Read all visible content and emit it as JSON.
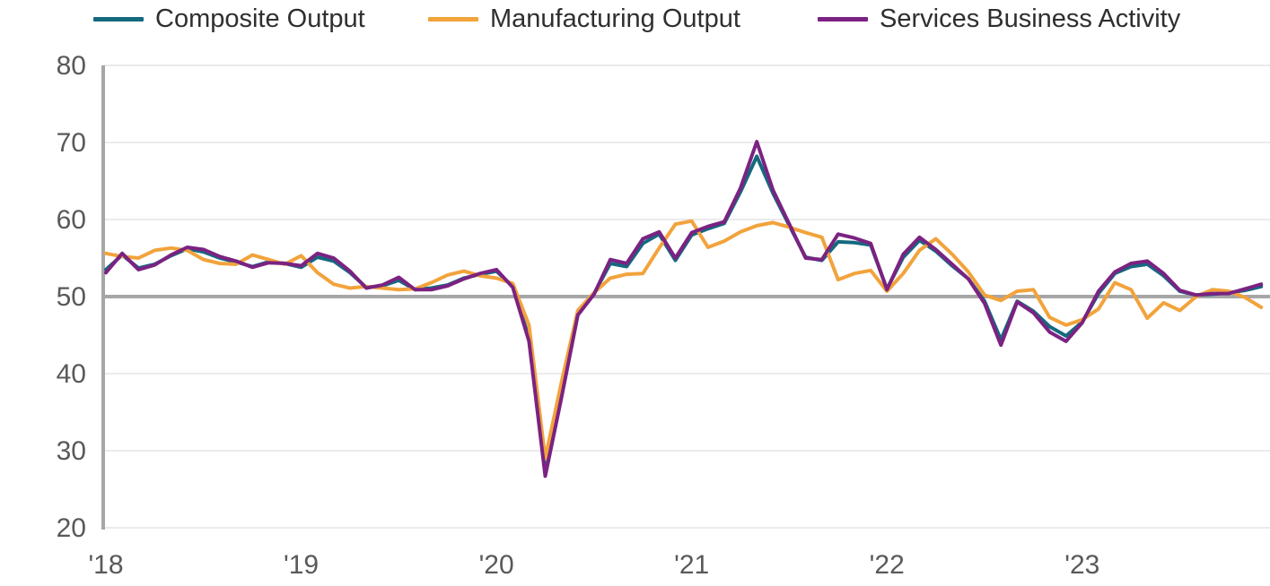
{
  "legend": {
    "items": [
      {
        "label": "Composite Output",
        "color": "#14697F"
      },
      {
        "label": "Manufacturing Output",
        "color": "#F2A33C"
      },
      {
        "label": "Services Business Activity",
        "color": "#7B2282"
      }
    ]
  },
  "style": {
    "background": "#FFFFFF",
    "grid_color": "#EBEBEB",
    "axis_color": "#A6A6A6",
    "reference_line_color": "#A6A6A6",
    "tick_label_color": "#595959",
    "legend_text_color": "#2F2F2F"
  },
  "chart_data": {
    "type": "line",
    "title": "",
    "xlabel": "",
    "ylabel": "",
    "ylim": [
      20,
      80
    ],
    "y_ticks": [
      20,
      30,
      40,
      50,
      60,
      70,
      80
    ],
    "reference_line": 50,
    "grid": "horizontal",
    "legend_position": "top",
    "x_tick_labels": [
      "'18",
      "'19",
      "'20",
      "'21",
      "'22",
      "'23"
    ],
    "x_tick_month_indices": [
      0,
      12,
      24,
      36,
      48,
      60
    ],
    "x": [
      "2018-01",
      "2018-02",
      "2018-03",
      "2018-04",
      "2018-05",
      "2018-06",
      "2018-07",
      "2018-08",
      "2018-09",
      "2018-10",
      "2018-11",
      "2018-12",
      "2019-01",
      "2019-02",
      "2019-03",
      "2019-04",
      "2019-05",
      "2019-06",
      "2019-07",
      "2019-08",
      "2019-09",
      "2019-10",
      "2019-11",
      "2019-12",
      "2020-01",
      "2020-02",
      "2020-03",
      "2020-04",
      "2020-05",
      "2020-06",
      "2020-07",
      "2020-08",
      "2020-09",
      "2020-10",
      "2020-11",
      "2020-12",
      "2021-01",
      "2021-02",
      "2021-03",
      "2021-04",
      "2021-05",
      "2021-06",
      "2021-07",
      "2021-08",
      "2021-09",
      "2021-10",
      "2021-11",
      "2021-12",
      "2022-01",
      "2022-02",
      "2022-03",
      "2022-04",
      "2022-05",
      "2022-06",
      "2022-07",
      "2022-08",
      "2022-09",
      "2022-10",
      "2022-11",
      "2022-12",
      "2023-01",
      "2023-02",
      "2023-03",
      "2023-04",
      "2023-05",
      "2023-06",
      "2023-07",
      "2023-08",
      "2023-09",
      "2023-10",
      "2023-11",
      "2023-12"
    ],
    "series": [
      {
        "name": "Composite Output",
        "color": "#14697F",
        "values": [
          53.5,
          55.4,
          53.7,
          54.2,
          55.3,
          56.2,
          55.8,
          55.0,
          54.5,
          53.9,
          54.5,
          54.3,
          53.8,
          55.1,
          54.6,
          53.1,
          51.2,
          51.4,
          52.1,
          50.9,
          51.1,
          51.5,
          52.4,
          52.9,
          53.3,
          51.3,
          44.6,
          27.1,
          37.1,
          47.7,
          50.4,
          54.3,
          53.9,
          56.9,
          58.1,
          54.7,
          58.0,
          58.8,
          59.5,
          63.6,
          68.2,
          63.4,
          59.2,
          55.1,
          54.7,
          57.1,
          57.0,
          56.7,
          51.0,
          55.1,
          57.3,
          55.9,
          54.0,
          52.3,
          49.4,
          44.4,
          49.4,
          48.1,
          46.1,
          44.9,
          46.7,
          50.4,
          53.0,
          53.9,
          54.2,
          52.7,
          50.7,
          50.2,
          50.3,
          50.5,
          50.8,
          51.3
        ]
      },
      {
        "name": "Manufacturing Output",
        "color": "#F2A33C",
        "values": [
          55.6,
          55.2,
          55.0,
          56.0,
          56.3,
          56.0,
          54.8,
          54.3,
          54.2,
          55.4,
          54.8,
          54.2,
          55.3,
          53.1,
          51.6,
          51.1,
          51.3,
          51.1,
          50.9,
          51.0,
          51.8,
          52.8,
          53.3,
          52.7,
          52.4,
          51.7,
          46.3,
          29.0,
          38.9,
          48.2,
          50.5,
          52.4,
          52.9,
          53.0,
          56.3,
          59.4,
          59.8,
          56.4,
          57.2,
          58.4,
          59.2,
          59.6,
          59.0,
          58.3,
          57.7,
          52.2,
          53.0,
          53.4,
          50.7,
          53.0,
          56.0,
          57.5,
          55.5,
          53.2,
          50.2,
          49.5,
          50.7,
          50.9,
          47.3,
          46.3,
          47.0,
          48.4,
          51.8,
          50.9,
          47.2,
          49.2,
          48.2,
          50.0,
          50.9,
          50.7,
          49.9,
          48.6
        ]
      },
      {
        "name": "Services Business Activity",
        "color": "#7B2282",
        "values": [
          53.1,
          55.6,
          53.5,
          54.1,
          55.4,
          56.4,
          56.1,
          55.2,
          54.6,
          53.8,
          54.4,
          54.3,
          54.0,
          55.6,
          55.0,
          53.3,
          51.1,
          51.5,
          52.5,
          50.9,
          50.9,
          51.4,
          52.3,
          53.0,
          53.5,
          51.2,
          44.2,
          26.7,
          36.9,
          47.6,
          50.3,
          54.8,
          54.3,
          57.5,
          58.4,
          55.0,
          58.3,
          59.1,
          59.7,
          64.1,
          70.1,
          63.8,
          59.4,
          55.0,
          54.8,
          58.1,
          57.6,
          56.9,
          50.9,
          55.5,
          57.7,
          56.1,
          54.2,
          52.3,
          49.1,
          43.7,
          49.3,
          47.9,
          45.4,
          44.2,
          46.6,
          50.7,
          53.2,
          54.3,
          54.6,
          53.0,
          50.8,
          50.2,
          50.4,
          50.4,
          51.0,
          51.6
        ]
      }
    ]
  }
}
